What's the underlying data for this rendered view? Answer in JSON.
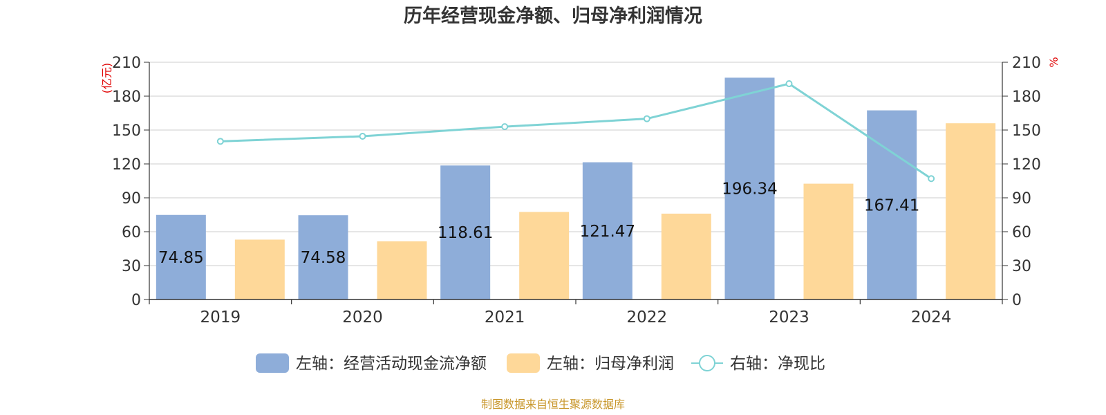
{
  "chart_data": {
    "type": "bar",
    "title": "历年经营现金净额、归母净利润情况",
    "categories": [
      "2019",
      "2020",
      "2021",
      "2022",
      "2023",
      "2024"
    ],
    "series": [
      {
        "name": "左轴：经营活动现金流净额",
        "type": "bar",
        "axis": "left",
        "color": "#8eadd9",
        "values": [
          74.85,
          74.58,
          118.61,
          121.47,
          196.34,
          167.41
        ],
        "labels": [
          "74.85",
          "74.58",
          "118.61",
          "121.47",
          "196.34",
          "167.41"
        ]
      },
      {
        "name": "左轴：归母净利润",
        "type": "bar",
        "axis": "left",
        "color": "#fed899",
        "values": [
          53,
          51.5,
          77.5,
          76,
          102.5,
          156
        ]
      },
      {
        "name": "右轴：净现比",
        "type": "line",
        "axis": "right",
        "color": "#7fd3d5",
        "values": [
          140,
          144.5,
          153,
          160,
          191,
          107
        ]
      }
    ],
    "left_axis": {
      "unit": "(亿元)",
      "ylim": [
        0,
        210
      ],
      "ticks": [
        "0",
        "30",
        "60",
        "90",
        "120",
        "150",
        "180",
        "210"
      ]
    },
    "right_axis": {
      "unit": "%",
      "ylim": [
        0,
        210
      ],
      "ticks": [
        "0",
        "30",
        "60",
        "90",
        "120",
        "150",
        "180",
        "210"
      ]
    },
    "grid": true,
    "legend_position": "bottom-center"
  },
  "footer": {
    "source": "制图数据来自恒生聚源数据库"
  }
}
